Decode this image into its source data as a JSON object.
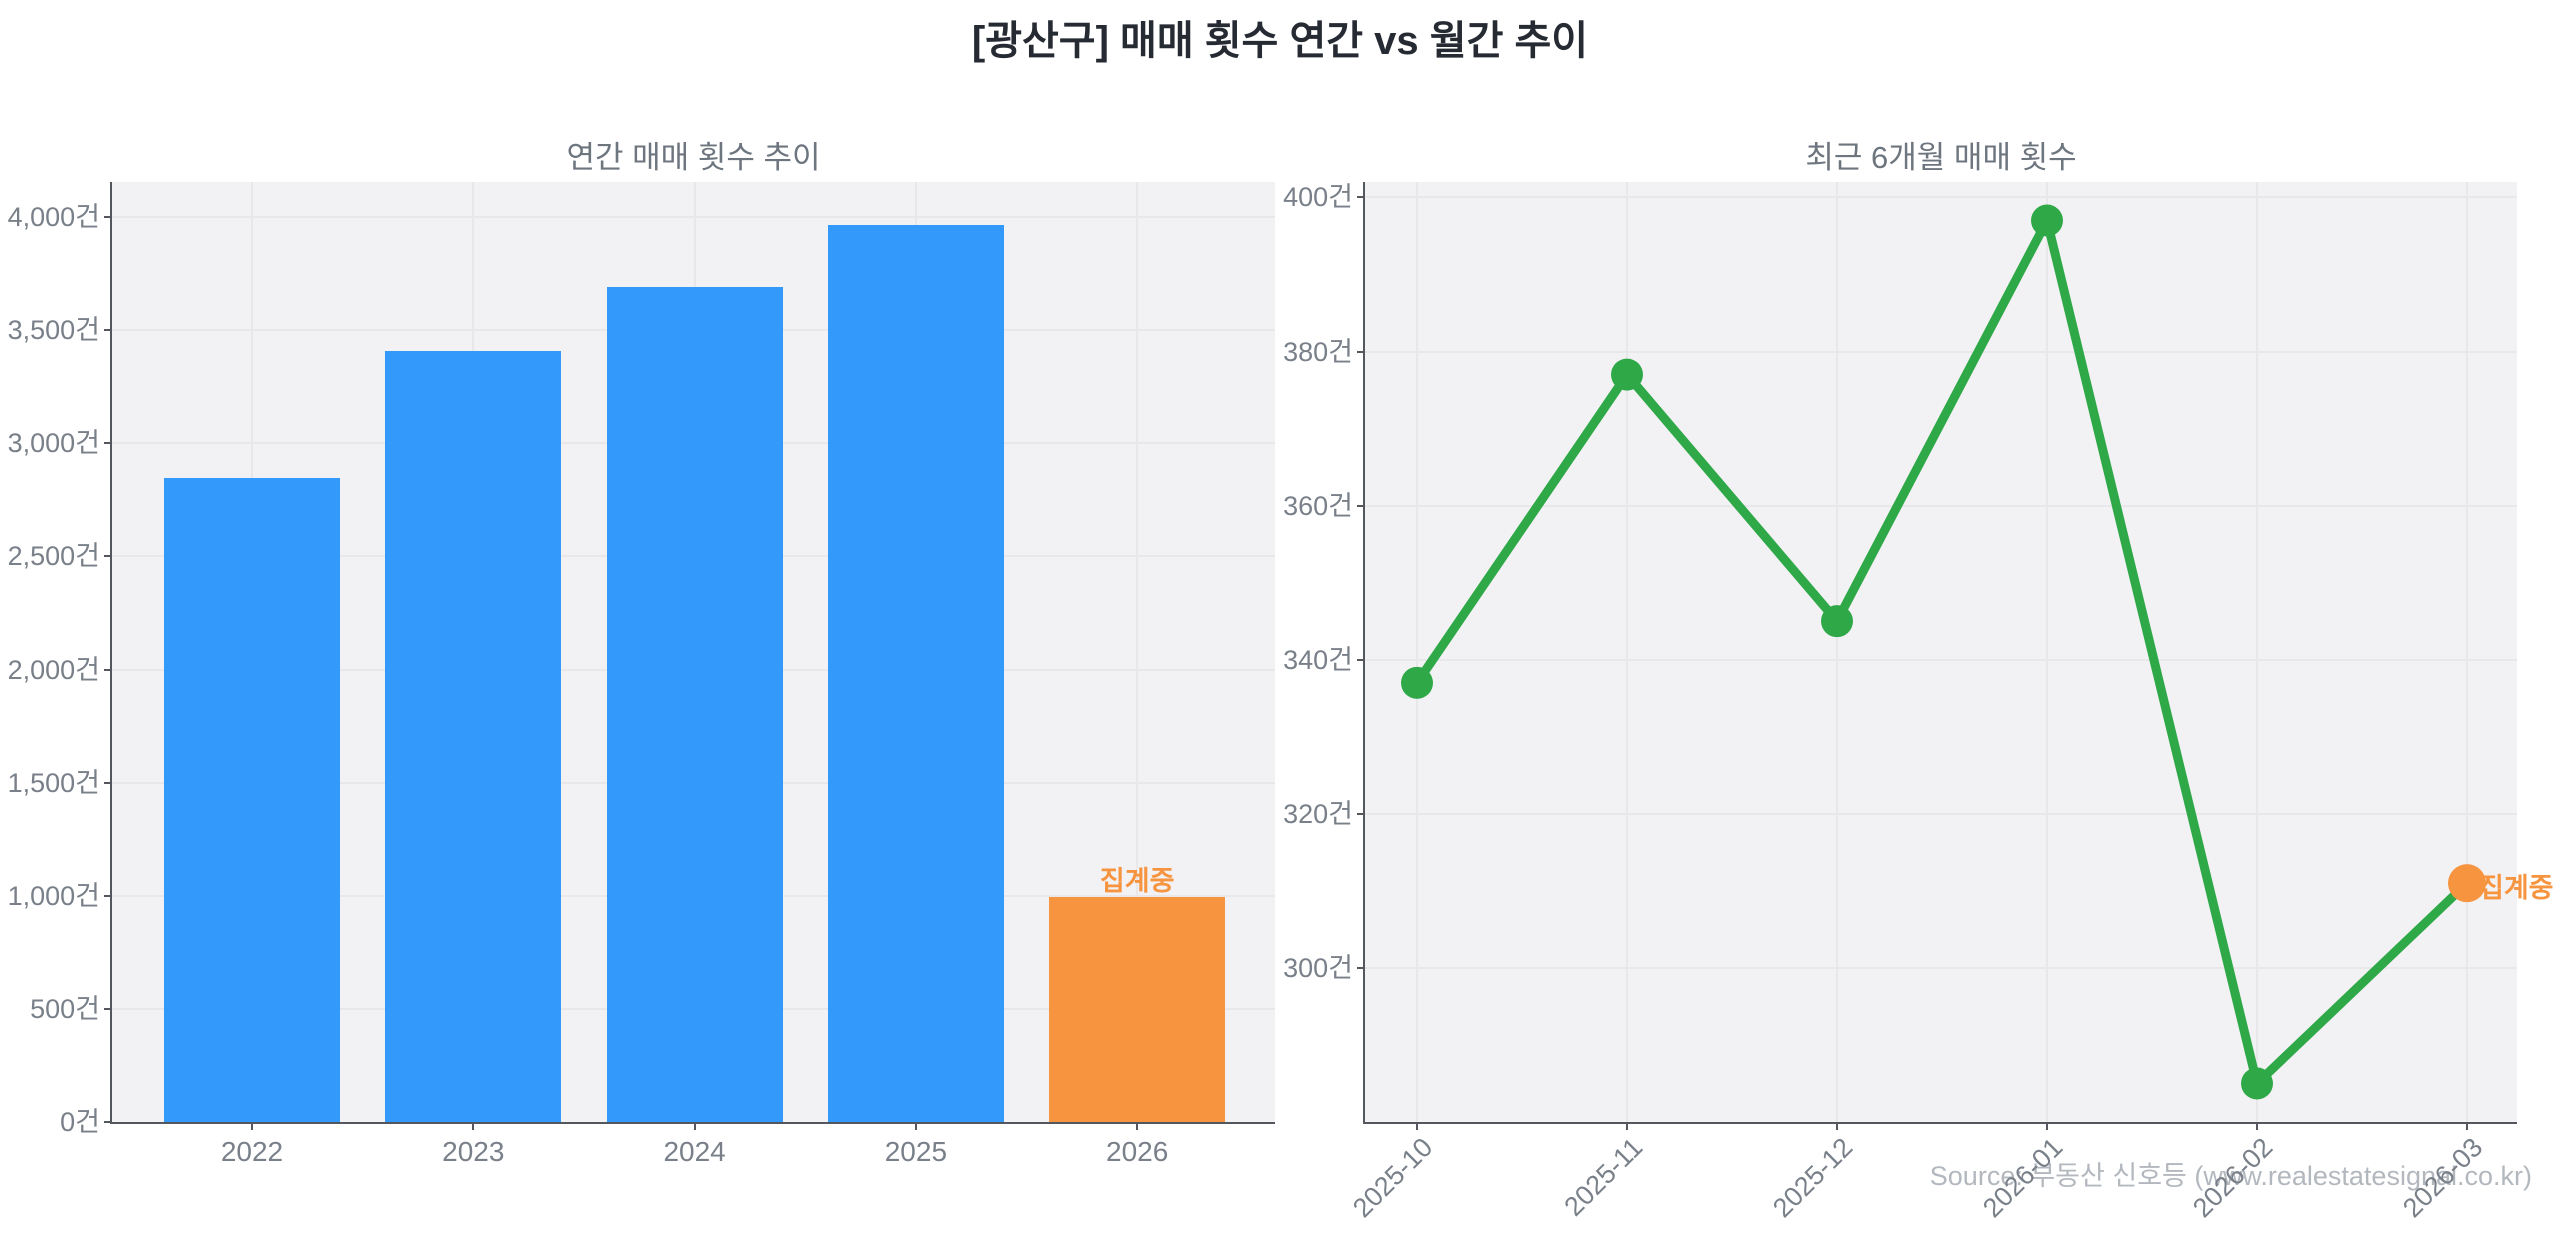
{
  "page_title": "[광산구] 매매 횟수 연간 vs 월간 추이",
  "source_text": "Source: 부동산 신호등 (www.realestatesignal.co.kr)",
  "colors": {
    "bar_blue": "#3399fb",
    "accent_orange": "#f79440",
    "line_green": "#2fa848",
    "title_dark": "#262b33",
    "chart_title_gray": "#6d757e",
    "axis_text_gray": "#798089",
    "source_gray": "#b3b8bf",
    "plot_background": "#f2f2f4",
    "grid_line": "#e8e8ea",
    "spine": "#54585e"
  },
  "chart_data": [
    {
      "type": "bar",
      "title": "연간 매매 횟수 추이",
      "categories": [
        "2022",
        "2023",
        "2024",
        "2025",
        "2026"
      ],
      "values": [
        2845,
        3410,
        3690,
        3965,
        995
      ],
      "bar_colors": [
        "blue",
        "blue",
        "blue",
        "blue",
        "orange"
      ],
      "unit_suffix": "건",
      "yticks": [
        0,
        500,
        1000,
        1500,
        2000,
        2500,
        3000,
        3500,
        4000
      ],
      "ylim": [
        0,
        4155
      ],
      "grid": true,
      "annotation": {
        "category": "2026",
        "label": "집계중"
      }
    },
    {
      "type": "line",
      "title": "최근 6개월 매매 횟수",
      "x": [
        "2025-10",
        "2025-11",
        "2025-12",
        "2026-01",
        "2026-02",
        "2026-03"
      ],
      "values": [
        337,
        377,
        345,
        397,
        285,
        311
      ],
      "point_colors": [
        "green",
        "green",
        "green",
        "green",
        "green",
        "orange"
      ],
      "unit_suffix": "건",
      "yticks": [
        300,
        320,
        340,
        360,
        380,
        400
      ],
      "ylim": [
        280,
        402
      ],
      "grid": true,
      "annotation": {
        "x": "2026-03",
        "label": "집계중"
      }
    }
  ]
}
